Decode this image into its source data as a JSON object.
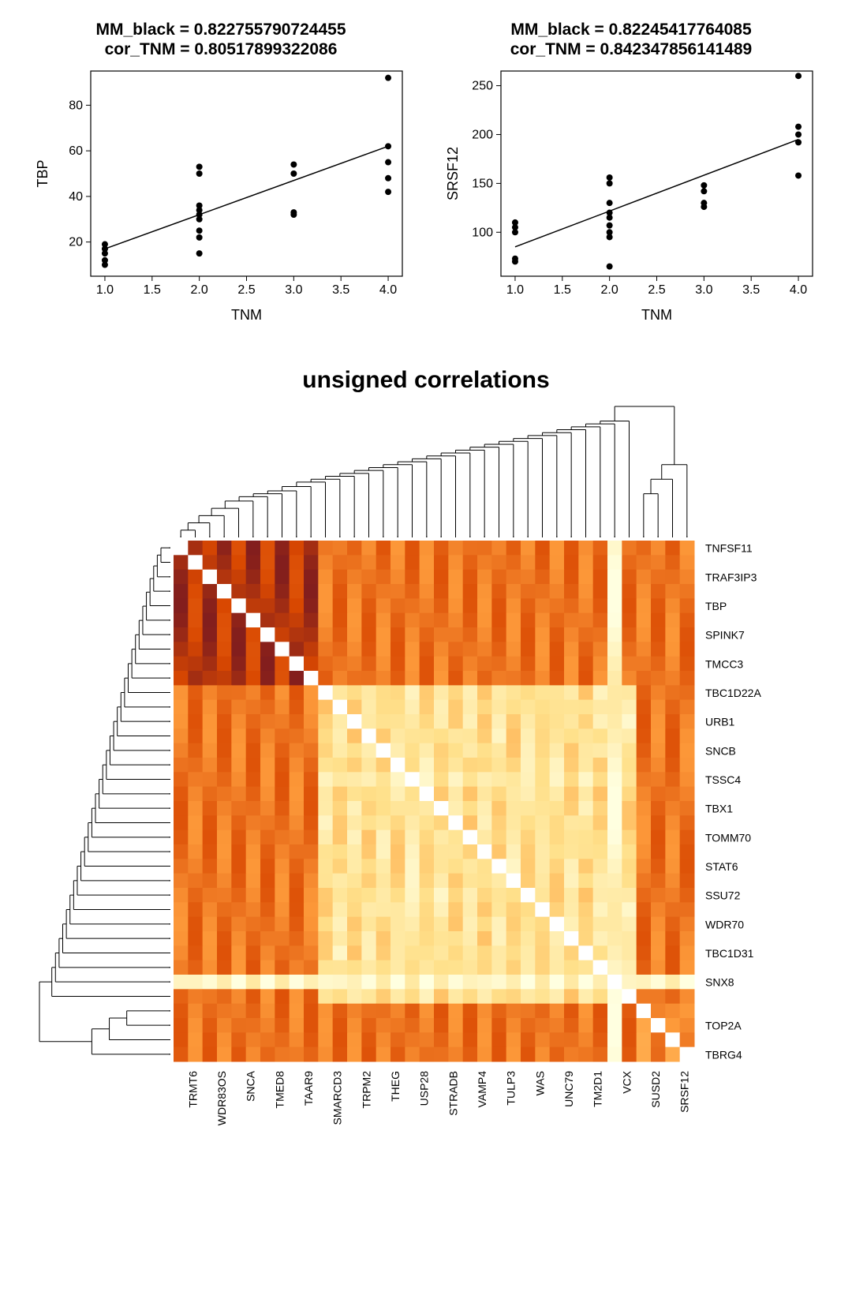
{
  "scatter_left": {
    "type": "scatter",
    "title_line1": "MM_black =  0.822755790724455",
    "title_line2": "cor_TNM =  0.80517899322086",
    "title_fontsize": 21,
    "title_fontweight": "bold",
    "xlabel": "TNM",
    "ylabel": "TBP",
    "label_fontsize": 18,
    "tick_fontsize": 16,
    "xlim": [
      0.85,
      4.15
    ],
    "ylim": [
      5,
      95
    ],
    "xticks": [
      1.0,
      1.5,
      2.0,
      2.5,
      3.0,
      3.5,
      4.0
    ],
    "yticks": [
      20,
      40,
      60,
      80
    ],
    "fit_line": {
      "x1": 1.0,
      "y1": 17,
      "x2": 4.0,
      "y2": 62
    },
    "point_color": "#000000",
    "point_radius": 4,
    "line_color": "#000000",
    "points": [
      {
        "x": 1,
        "y": 10
      },
      {
        "x": 1,
        "y": 12
      },
      {
        "x": 1,
        "y": 15
      },
      {
        "x": 1,
        "y": 17
      },
      {
        "x": 1,
        "y": 19
      },
      {
        "x": 2,
        "y": 15
      },
      {
        "x": 2,
        "y": 22
      },
      {
        "x": 2,
        "y": 25
      },
      {
        "x": 2,
        "y": 30
      },
      {
        "x": 2,
        "y": 32
      },
      {
        "x": 2,
        "y": 34
      },
      {
        "x": 2,
        "y": 36
      },
      {
        "x": 2,
        "y": 50
      },
      {
        "x": 2,
        "y": 53
      },
      {
        "x": 3,
        "y": 32
      },
      {
        "x": 3,
        "y": 33
      },
      {
        "x": 3,
        "y": 50
      },
      {
        "x": 3,
        "y": 54
      },
      {
        "x": 4,
        "y": 42
      },
      {
        "x": 4,
        "y": 48
      },
      {
        "x": 4,
        "y": 55
      },
      {
        "x": 4,
        "y": 62
      },
      {
        "x": 4,
        "y": 92
      }
    ]
  },
  "scatter_right": {
    "type": "scatter",
    "title_line1": "MM_black =  0.82245417764085",
    "title_line2": "cor_TNM =  0.842347856141489",
    "title_fontsize": 21,
    "title_fontweight": "bold",
    "xlabel": "TNM",
    "ylabel": "SRSF12",
    "label_fontsize": 18,
    "tick_fontsize": 16,
    "xlim": [
      0.85,
      4.15
    ],
    "ylim": [
      55,
      265
    ],
    "xticks": [
      1.0,
      1.5,
      2.0,
      2.5,
      3.0,
      3.5,
      4.0
    ],
    "yticks": [
      100,
      150,
      200,
      250
    ],
    "fit_line": {
      "x1": 1.0,
      "y1": 85,
      "x2": 4.0,
      "y2": 195
    },
    "point_color": "#000000",
    "point_radius": 4,
    "line_color": "#000000",
    "points": [
      {
        "x": 1,
        "y": 70
      },
      {
        "x": 1,
        "y": 73
      },
      {
        "x": 1,
        "y": 100
      },
      {
        "x": 1,
        "y": 105
      },
      {
        "x": 1,
        "y": 110
      },
      {
        "x": 2,
        "y": 65
      },
      {
        "x": 2,
        "y": 95
      },
      {
        "x": 2,
        "y": 100
      },
      {
        "x": 2,
        "y": 107
      },
      {
        "x": 2,
        "y": 115
      },
      {
        "x": 2,
        "y": 120
      },
      {
        "x": 2,
        "y": 130
      },
      {
        "x": 2,
        "y": 150
      },
      {
        "x": 2,
        "y": 156
      },
      {
        "x": 3,
        "y": 126
      },
      {
        "x": 3,
        "y": 130
      },
      {
        "x": 3,
        "y": 142
      },
      {
        "x": 3,
        "y": 148
      },
      {
        "x": 4,
        "y": 158
      },
      {
        "x": 4,
        "y": 192
      },
      {
        "x": 4,
        "y": 200
      },
      {
        "x": 4,
        "y": 208
      },
      {
        "x": 4,
        "y": 260
      }
    ]
  },
  "heatmap": {
    "type": "heatmap",
    "title": "unsigned correlations",
    "title_fontsize": 30,
    "title_fontweight": "bold",
    "n": 36,
    "tick_fontsize": 14,
    "row_labels": [
      "TNFSF11",
      "TRAF3IP3",
      "TBP",
      "SPINK7",
      "TMCC3",
      "TBC1D22A",
      "URB1",
      "SNCB",
      "TSSC4",
      "TBX1",
      "TOMM70",
      "STAT6",
      "SSU72",
      "WDR70",
      "TBC1D31",
      "SNX8",
      "TOP2A",
      "TBRG4"
    ],
    "row_label_rows": [
      0,
      2,
      4,
      6,
      8,
      10,
      12,
      14,
      16,
      18,
      20,
      22,
      24,
      26,
      28,
      30,
      33,
      35
    ],
    "col_labels": [
      "TRMT6",
      "WDR83OS",
      "SNCA",
      "TMED8",
      "TAAR9",
      "SMARCD3",
      "TRPM2",
      "THEG",
      "USP28",
      "STRADB",
      "VAMP4",
      "TULP3",
      "WAS",
      "UNC79",
      "TM2D1",
      "VCX",
      "SUSD2",
      "SRSF12"
    ],
    "col_label_cols": [
      1,
      3,
      5,
      7,
      9,
      11,
      13,
      15,
      17,
      19,
      21,
      23,
      25,
      27,
      29,
      31,
      33,
      35
    ],
    "colorscale": [
      {
        "v": 0,
        "c": "#ffffe0"
      },
      {
        "v": 0.25,
        "c": "#ffe08a"
      },
      {
        "v": 0.5,
        "c": "#ff9e3d"
      },
      {
        "v": 0.75,
        "c": "#d94801"
      },
      {
        "v": 1.0,
        "c": "#5a0a2a"
      }
    ],
    "high_block_rows": [
      0,
      1,
      2,
      3,
      4,
      5,
      6,
      7,
      8,
      9
    ],
    "high_block_cols": [
      0,
      1,
      2,
      3,
      4,
      5,
      6,
      7,
      8,
      9
    ],
    "bottom_rows": [
      32,
      33,
      34,
      35
    ],
    "right_cols": [
      32,
      33,
      34,
      35
    ],
    "dendro_top_y": 130,
    "dendro_top_heights": [
      0,
      5,
      10,
      15,
      20,
      25,
      28,
      30,
      32,
      35,
      38,
      40,
      42,
      44,
      46,
      48,
      50,
      52,
      54,
      56,
      58,
      60,
      62,
      64,
      66,
      68,
      70,
      72,
      74,
      76,
      78,
      80,
      82,
      70,
      10,
      20
    ],
    "dendro_left_x": 130,
    "cell_border": "#ffffff00"
  }
}
